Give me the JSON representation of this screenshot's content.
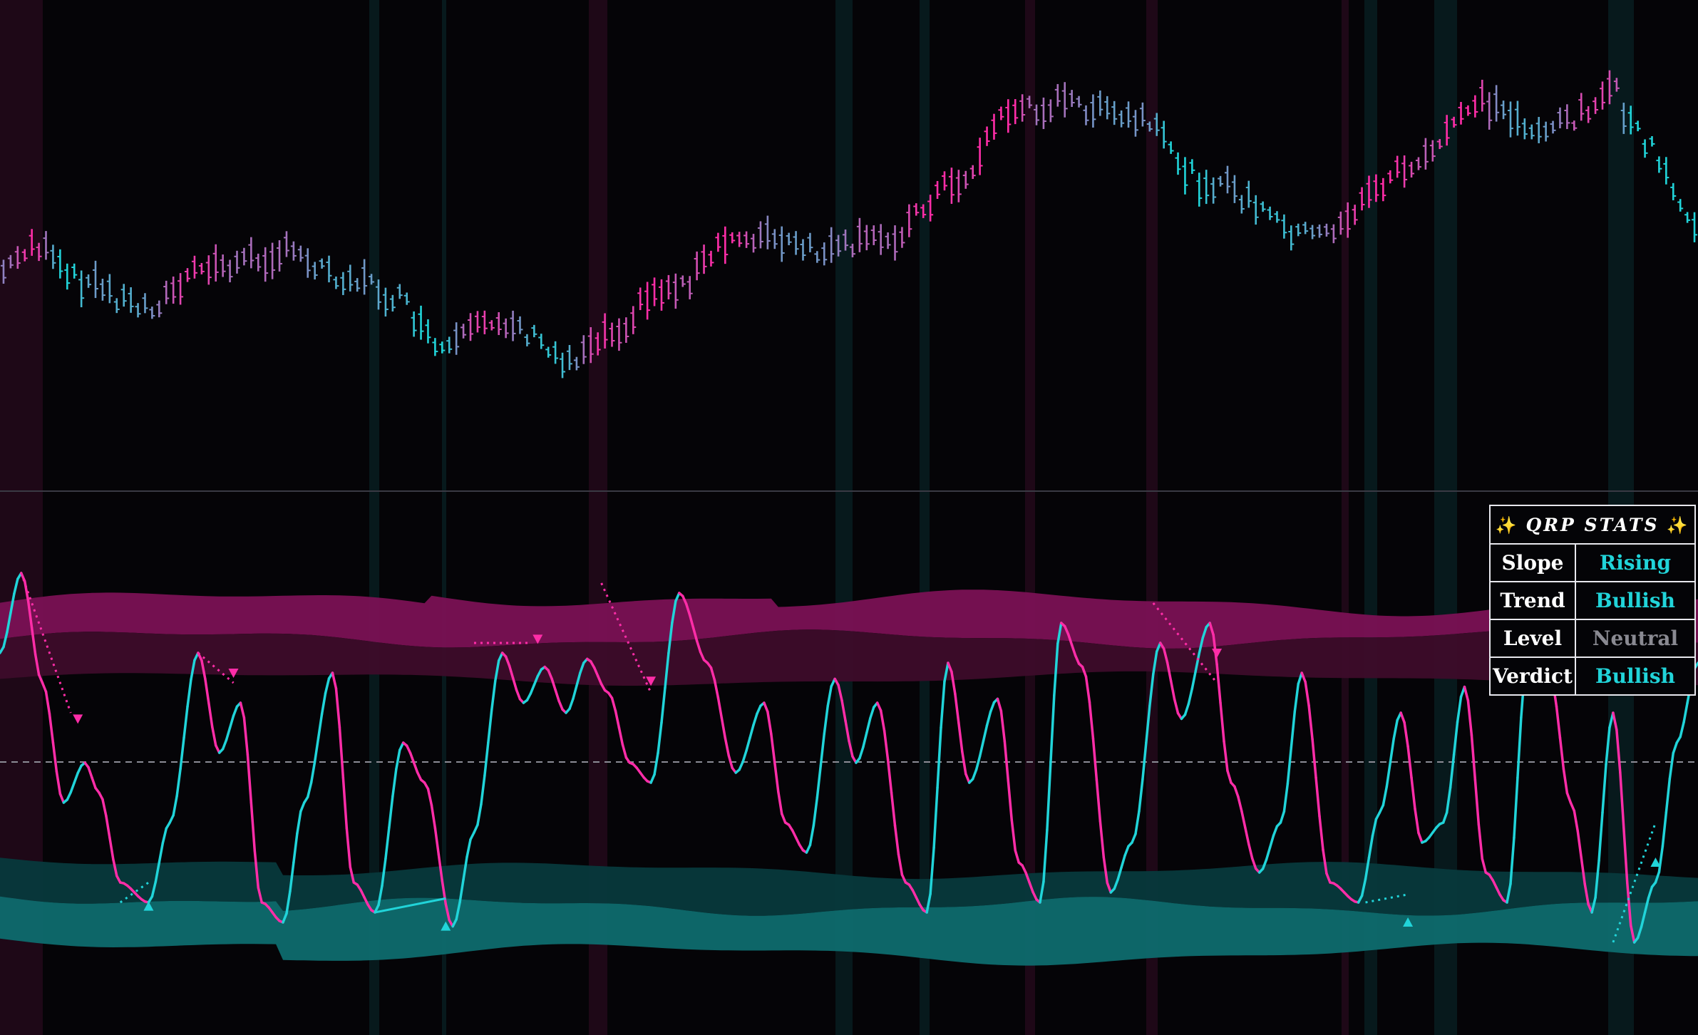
{
  "theme": {
    "background": "#050407",
    "bull_color": "#21d4d9",
    "bear_color": "#ff2da8",
    "neutral_color": "#8a8a92",
    "upper_band_outer": "#7a1154",
    "upper_band_inner": "#3d0c2a",
    "lower_band_outer": "#0e6b6e",
    "lower_band_inner": "#07393c"
  },
  "stats_table": {
    "title": "QRP STATS",
    "rows": [
      {
        "label": "Slope",
        "value": "Rising",
        "state": "bull"
      },
      {
        "label": "Trend",
        "value": "Bullish",
        "state": "bull"
      },
      {
        "label": "Level",
        "value": "Neutral",
        "state": "neutral"
      },
      {
        "label": "Verdict",
        "value": "Bullish",
        "state": "bull"
      }
    ]
  },
  "chart_data": [
    {
      "type": "bar",
      "description_role": "price-panel",
      "x_range": [
        0,
        240
      ],
      "y_range": [
        0,
        100
      ],
      "keyframes_x": [
        0,
        4,
        10,
        20,
        30,
        40,
        50,
        55,
        62,
        70,
        80,
        85,
        94,
        105,
        116,
        124,
        135,
        142,
        150,
        160,
        170,
        185,
        200,
        208,
        218,
        228,
        230,
        240
      ],
      "keyframes_y": [
        42,
        48,
        40,
        34,
        43,
        46,
        40,
        36,
        24,
        31,
        22,
        28,
        38,
        50,
        46,
        49,
        62,
        78,
        80,
        76,
        62,
        50,
        66,
        80,
        74,
        82,
        74,
        52
      ],
      "color_scale": "gradient cyan to magenta by momentum"
    },
    {
      "type": "line",
      "description_role": "oscillator-panel",
      "x_range": [
        0,
        240
      ],
      "y_range": [
        -100,
        100
      ],
      "midline": 0,
      "keyframes_x": [
        0,
        3,
        6,
        9,
        12,
        14,
        17,
        21,
        24,
        28,
        31,
        34,
        37,
        40,
        43,
        47,
        50,
        53,
        57,
        60,
        64,
        67,
        71,
        74,
        77,
        80,
        83,
        86,
        89,
        92,
        96,
        100,
        104,
        108,
        111,
        114,
        118,
        121,
        124,
        128,
        131,
        134,
        137,
        141,
        144,
        147,
        150,
        153,
        157,
        160,
        164,
        167,
        171,
        174,
        178,
        181,
        184,
        188,
        192,
        195,
        198,
        201,
        204,
        207,
        210,
        213,
        216,
        219,
        222,
        225,
        228,
        231,
        234,
        237,
        240
      ],
      "keyframes_y": [
        55,
        95,
        40,
        -20,
        0,
        -15,
        -60,
        -70,
        -30,
        55,
        5,
        30,
        -70,
        -80,
        -20,
        45,
        -60,
        -75,
        10,
        -10,
        -82,
        -35,
        55,
        30,
        48,
        25,
        52,
        35,
        0,
        -10,
        85,
        50,
        -5,
        30,
        -30,
        -45,
        42,
        0,
        30,
        -60,
        -75,
        50,
        -10,
        32,
        -50,
        -70,
        70,
        48,
        -65,
        -40,
        60,
        22,
        70,
        -10,
        -55,
        -30,
        45,
        -60,
        -70,
        -25,
        25,
        -40,
        -30,
        38,
        -55,
        -70,
        55,
        45,
        -20,
        -75,
        25,
        -90,
        -60,
        10,
        50
      ]
    }
  ]
}
